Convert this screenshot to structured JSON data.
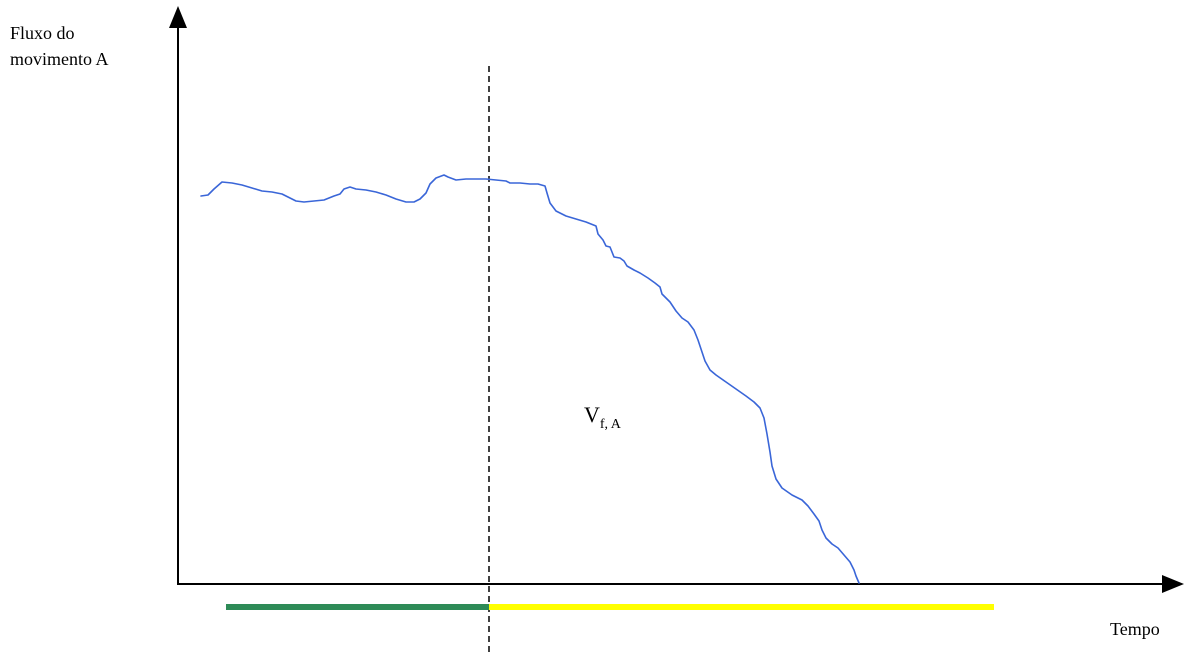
{
  "diagram": {
    "y_axis_label_lines": [
      "Fluxo do",
      "movimento A"
    ],
    "x_axis_label": "Tempo",
    "area_label_main": "V",
    "area_label_sub": "f, A",
    "colors": {
      "axis": "#000000",
      "curve": "#3a66d8",
      "dashed_line": "#000000",
      "phase_before": "#2e8b57",
      "phase_after": "#ffff00"
    }
  }
}
